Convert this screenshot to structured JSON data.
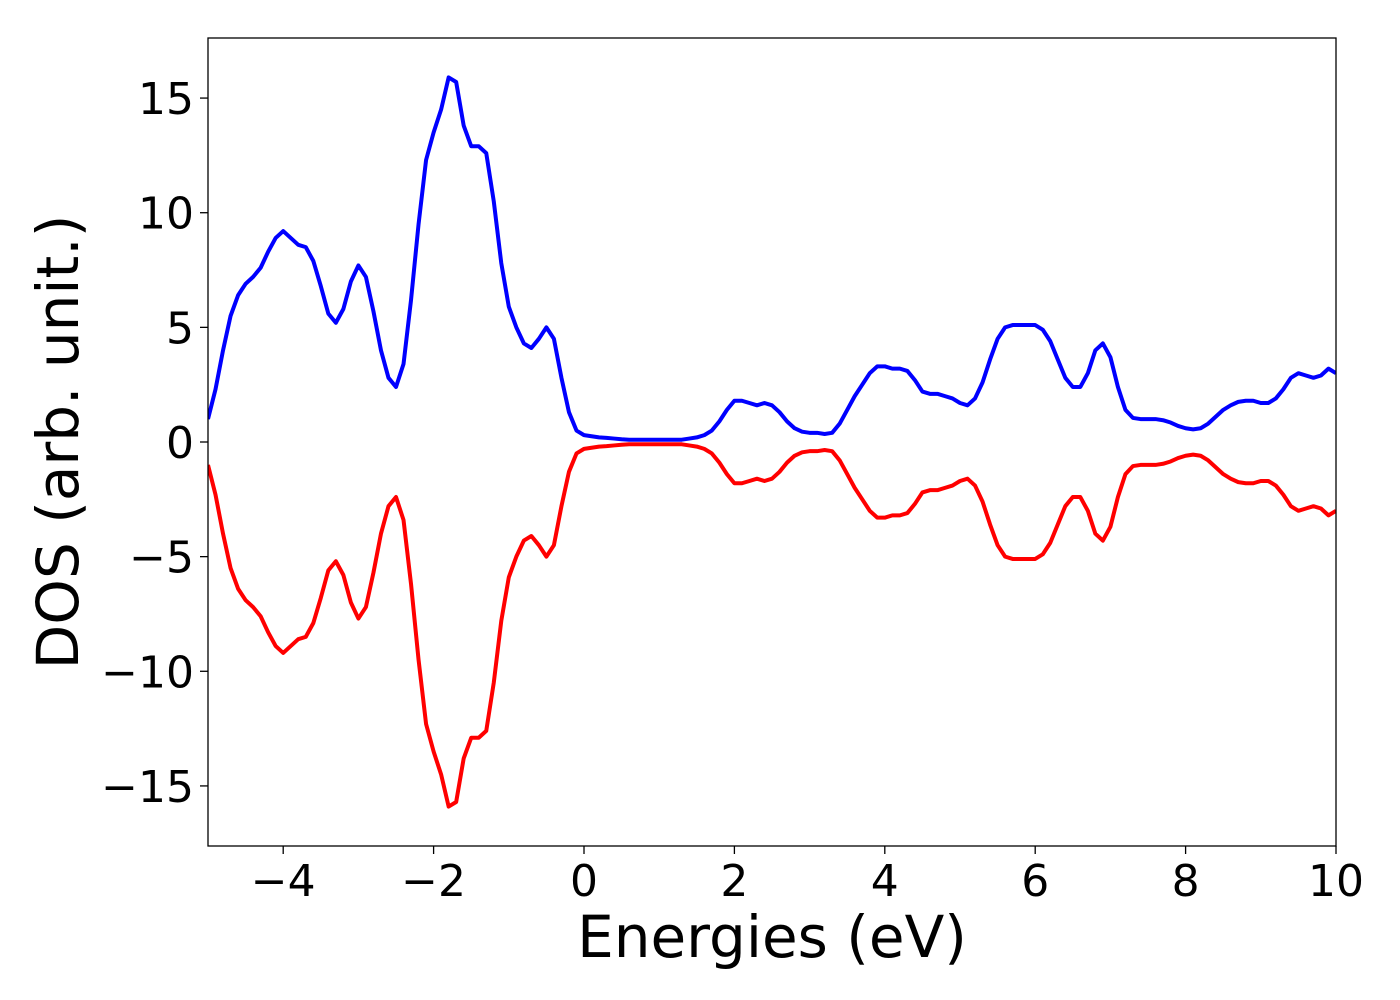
{
  "chart_data": {
    "type": "line",
    "xlabel": "Energies (eV)",
    "ylabel": "DOS (arb. unit.)",
    "x": [
      -5.0,
      -4.9,
      -4.8,
      -4.7,
      -4.6,
      -4.5,
      -4.4,
      -4.3,
      -4.2,
      -4.1,
      -4.0,
      -3.9,
      -3.8,
      -3.7,
      -3.6,
      -3.5,
      -3.4,
      -3.3,
      -3.2,
      -3.1,
      -3.0,
      -2.9,
      -2.8,
      -2.7,
      -2.6,
      -2.5,
      -2.4,
      -2.3,
      -2.2,
      -2.1,
      -2.0,
      -1.9,
      -1.8,
      -1.7,
      -1.6,
      -1.5,
      -1.4,
      -1.3,
      -1.2,
      -1.1,
      -1.0,
      -0.9,
      -0.8,
      -0.7,
      -0.6,
      -0.5,
      -0.4,
      -0.3,
      -0.2,
      -0.1,
      0.0,
      0.1,
      0.2,
      0.3,
      0.4,
      0.5,
      0.6,
      0.7,
      0.8,
      0.9,
      1.0,
      1.1,
      1.2,
      1.3,
      1.4,
      1.5,
      1.6,
      1.7,
      1.8,
      1.9,
      2.0,
      2.1,
      2.2,
      2.3,
      2.4,
      2.5,
      2.6,
      2.7,
      2.8,
      2.9,
      3.0,
      3.1,
      3.2,
      3.3,
      3.4,
      3.5,
      3.6,
      3.7,
      3.8,
      3.9,
      4.0,
      4.1,
      4.2,
      4.3,
      4.4,
      4.5,
      4.6,
      4.7,
      4.8,
      4.9,
      5.0,
      5.1,
      5.2,
      5.3,
      5.4,
      5.5,
      5.6,
      5.7,
      5.8,
      5.9,
      6.0,
      6.1,
      6.2,
      6.3,
      6.4,
      6.5,
      6.6,
      6.7,
      6.8,
      6.9,
      7.0,
      7.1,
      7.2,
      7.3,
      7.4,
      7.5,
      7.6,
      7.7,
      7.8,
      7.9,
      8.0,
      8.1,
      8.2,
      8.3,
      8.4,
      8.5,
      8.6,
      8.7,
      8.8,
      8.9,
      9.0,
      9.1,
      9.2,
      9.3,
      9.4,
      9.5,
      9.6,
      9.7,
      9.8,
      9.9,
      10.0
    ],
    "series": [
      {
        "color": "#0000ff",
        "values": [
          1.0,
          2.3,
          4.0,
          5.5,
          6.4,
          6.9,
          7.2,
          7.6,
          8.3,
          8.9,
          9.2,
          8.9,
          8.6,
          8.5,
          7.9,
          6.8,
          5.6,
          5.2,
          5.8,
          7.0,
          7.7,
          7.2,
          5.7,
          4.0,
          2.8,
          2.4,
          3.4,
          6.2,
          9.5,
          12.3,
          13.5,
          14.5,
          15.9,
          15.7,
          13.8,
          12.9,
          12.9,
          12.6,
          10.5,
          7.8,
          5.9,
          5.0,
          4.3,
          4.1,
          4.5,
          5.0,
          4.5,
          2.8,
          1.3,
          0.5,
          0.3,
          0.25,
          0.2,
          0.18,
          0.15,
          0.12,
          0.1,
          0.1,
          0.1,
          0.1,
          0.1,
          0.1,
          0.1,
          0.1,
          0.15,
          0.2,
          0.3,
          0.5,
          0.9,
          1.4,
          1.8,
          1.8,
          1.7,
          1.6,
          1.7,
          1.6,
          1.3,
          0.9,
          0.6,
          0.45,
          0.4,
          0.4,
          0.35,
          0.4,
          0.8,
          1.4,
          2.0,
          2.5,
          3.0,
          3.3,
          3.3,
          3.2,
          3.2,
          3.1,
          2.7,
          2.2,
          2.1,
          2.1,
          2.0,
          1.9,
          1.7,
          1.6,
          1.9,
          2.6,
          3.6,
          4.5,
          5.0,
          5.1,
          5.1,
          5.1,
          5.1,
          4.9,
          4.4,
          3.6,
          2.8,
          2.4,
          2.4,
          3.0,
          4.0,
          4.3,
          3.7,
          2.4,
          1.4,
          1.05,
          1.0,
          1.0,
          1.0,
          0.95,
          0.85,
          0.7,
          0.6,
          0.55,
          0.6,
          0.8,
          1.1,
          1.4,
          1.6,
          1.75,
          1.8,
          1.8,
          1.7,
          1.7,
          1.9,
          2.3,
          2.8,
          3.0,
          2.9,
          2.8,
          2.9,
          3.2,
          3.0
        ]
      },
      {
        "color": "#ff0000",
        "values": [
          -1.0,
          -2.3,
          -4.0,
          -5.5,
          -6.4,
          -6.9,
          -7.2,
          -7.6,
          -8.3,
          -8.9,
          -9.2,
          -8.9,
          -8.6,
          -8.5,
          -7.9,
          -6.8,
          -5.6,
          -5.2,
          -5.8,
          -7.0,
          -7.7,
          -7.2,
          -5.7,
          -4.0,
          -2.8,
          -2.4,
          -3.4,
          -6.2,
          -9.5,
          -12.3,
          -13.5,
          -14.5,
          -15.9,
          -15.7,
          -13.8,
          -12.9,
          -12.9,
          -12.6,
          -10.5,
          -7.8,
          -5.9,
          -5.0,
          -4.3,
          -4.1,
          -4.5,
          -5.0,
          -4.5,
          -2.8,
          -1.3,
          -0.5,
          -0.3,
          -0.25,
          -0.2,
          -0.18,
          -0.15,
          -0.12,
          -0.1,
          -0.1,
          -0.1,
          -0.1,
          -0.1,
          -0.1,
          -0.1,
          -0.1,
          -0.15,
          -0.2,
          -0.3,
          -0.5,
          -0.9,
          -1.4,
          -1.8,
          -1.8,
          -1.7,
          -1.6,
          -1.7,
          -1.6,
          -1.3,
          -0.9,
          -0.6,
          -0.45,
          -0.4,
          -0.4,
          -0.35,
          -0.4,
          -0.8,
          -1.4,
          -2.0,
          -2.5,
          -3.0,
          -3.3,
          -3.3,
          -3.2,
          -3.2,
          -3.1,
          -2.7,
          -2.2,
          -2.1,
          -2.1,
          -2.0,
          -1.9,
          -1.7,
          -1.6,
          -1.9,
          -2.6,
          -3.6,
          -4.5,
          -5.0,
          -5.1,
          -5.1,
          -5.1,
          -5.1,
          -4.9,
          -4.4,
          -3.6,
          -2.8,
          -2.4,
          -2.4,
          -3.0,
          -4.0,
          -4.3,
          -3.7,
          -2.4,
          -1.4,
          -1.05,
          -1.0,
          -1.0,
          -1.0,
          -0.95,
          -0.85,
          -0.7,
          -0.6,
          -0.55,
          -0.6,
          -0.8,
          -1.1,
          -1.4,
          -1.6,
          -1.75,
          -1.8,
          -1.8,
          -1.7,
          -1.7,
          -1.9,
          -2.3,
          -2.8,
          -3.0,
          -2.9,
          -2.8,
          -2.9,
          -3.2,
          -3.0
        ]
      }
    ],
    "xlim": [
      -5,
      10
    ],
    "xticks": [
      {
        "value": -4,
        "label": "−4"
      },
      {
        "value": -2,
        "label": "−2"
      },
      0,
      2,
      4,
      6,
      8,
      10
    ],
    "ylim": [
      -17.62,
      17.62
    ],
    "yticks": [
      {
        "value": -15,
        "label": "−15"
      },
      {
        "value": -10,
        "label": "−10"
      },
      {
        "value": -5,
        "label": "−5"
      },
      0,
      5,
      10,
      15
    ]
  }
}
